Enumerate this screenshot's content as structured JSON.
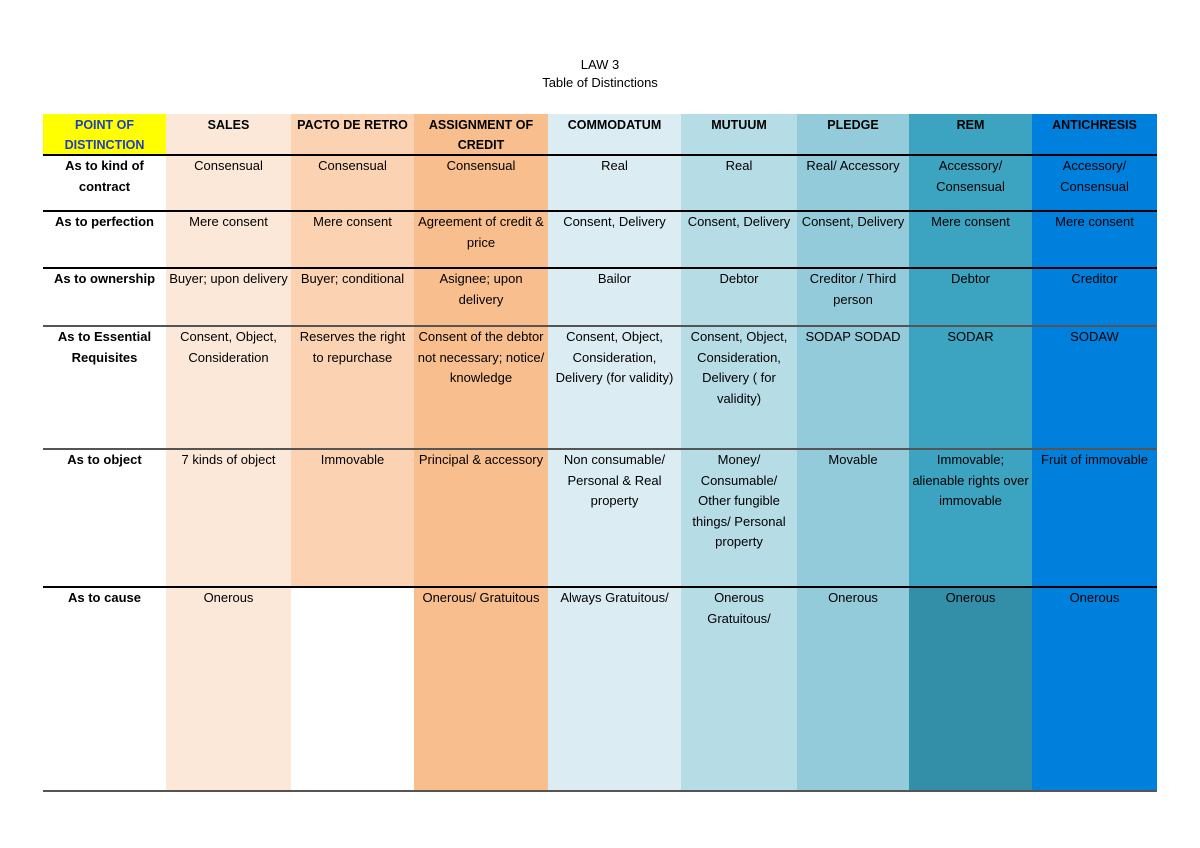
{
  "document": {
    "title": "LAW 3",
    "subtitle": "Table of Distinctions"
  },
  "colors": {
    "point_header_bg": "#ffff00",
    "point_header_text": "#1f3fbf",
    "sales": "#fce8d9",
    "pacto": "#fbd3b3",
    "assignment": "#f8be8e",
    "commodatum": "#dbedf3",
    "mutuum": "#b6dce6",
    "pledge": "#93cbda",
    "rem": "#3ca3c0",
    "rem_last": "#338ea8",
    "antichresis": "#0080dd"
  },
  "table": {
    "headers": [
      "POINT OF DISTINCTION",
      "SALES",
      "PACTO DE RETRO",
      "ASSIGNMENT OF CREDIT",
      "COMMODATUM",
      "MUTUUM",
      "PLEDGE",
      "REM",
      "ANTICHRESIS"
    ],
    "rows": [
      {
        "label": "As to kind of contract",
        "cells": [
          "Consensual",
          "Consensual",
          "Consensual",
          "Real",
          "Real",
          "Real/ Accessory",
          "Accessory/ Consensual",
          "Accessory/ Consensual"
        ]
      },
      {
        "label": "As to perfection",
        "cells": [
          "Mere consent",
          "Mere consent",
          "Agreement of credit & price",
          "Consent, Delivery",
          "Consent, Delivery",
          "Consent, Delivery",
          "Mere consent",
          "Mere consent"
        ]
      },
      {
        "label": "As to ownership",
        "cells": [
          "Buyer; upon delivery",
          "Buyer; conditional",
          "Asignee; upon delivery",
          "Bailor",
          "Debtor",
          "Creditor / Third person",
          "Debtor",
          "Creditor"
        ]
      },
      {
        "label": "As to Essential Requisites",
        "cells": [
          "Consent, Object, Consideration",
          "Reserves the right to repurchase",
          "Consent of the debtor not necessary; notice/ knowledge",
          "Consent, Object, Consideration, Delivery (for validity)",
          "Consent, Object, Consideration, Delivery ( for validity)",
          "SODAP SODAD",
          "SODAR",
          "SODAW"
        ]
      },
      {
        "label": "As to object",
        "cells": [
          "7 kinds of object",
          "Immovable",
          "Principal & accessory",
          "Non consumable/ Personal & Real property",
          "Money/ Consumable/ Other fungible things/ Personal property",
          "Movable",
          "Immovable; alienable rights over immovable",
          "Fruit of immovable"
        ]
      },
      {
        "label": "As to cause",
        "cells": [
          "Onerous",
          "",
          "Onerous/ Gratuitous",
          "Always Gratuitous/",
          "Onerous Gratuitous/",
          "Onerous",
          "Onerous",
          "Onerous"
        ]
      }
    ]
  }
}
